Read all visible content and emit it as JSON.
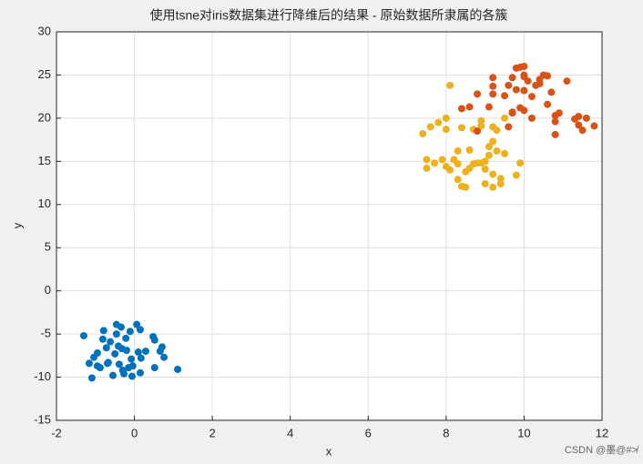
{
  "chart_data": {
    "type": "scatter",
    "title": "使用tsne对iris数据集进行降维后的结果 - 原始数据所隶属的各簇",
    "xlabel": "x",
    "ylabel": "y",
    "watermark": "CSDN @墨@#≯",
    "xlim": [
      -2,
      12
    ],
    "xticks": [
      -2,
      0,
      2,
      4,
      6,
      8,
      10,
      12
    ],
    "ylim": [
      -15,
      30
    ],
    "yticks": [
      -15,
      -10,
      -5,
      0,
      5,
      10,
      15,
      20,
      25,
      30
    ],
    "grid": true,
    "series": [
      {
        "color": "#0072BD",
        "x": [
          -1.3,
          -1.16,
          -1.09,
          -1.04,
          -0.95,
          -0.88,
          -0.79,
          -0.81,
          -0.72,
          -0.67,
          -0.62,
          -0.55,
          -0.5,
          -0.46,
          -0.41,
          -0.39,
          -0.34,
          -0.32,
          -0.3,
          -0.27,
          -0.22,
          -0.2,
          -0.15,
          -0.11,
          -0.08,
          -0.06,
          -0.04,
          0.06,
          0.1,
          0.15,
          0.15,
          0.17,
          0.29,
          0.48,
          0.52,
          0.52,
          0.66,
          0.71,
          0.76,
          1.11,
          -0.95,
          -0.69,
          -0.46
        ],
        "values": [
          -5.2,
          -8.4,
          -10.1,
          -7.7,
          -8.7,
          -8.9,
          -4.6,
          -5.6,
          -6.6,
          -8.3,
          -5.9,
          -9.8,
          -7.3,
          -5.0,
          -6.4,
          -8.5,
          -4.2,
          -6.7,
          -9.2,
          -9.6,
          -5.5,
          -6.9,
          -8.9,
          -4.7,
          -7.9,
          -9.9,
          -8.7,
          -3.9,
          -7.1,
          -4.5,
          -9.5,
          -7.8,
          -7.0,
          -5.3,
          -5.7,
          -8.9,
          -7.0,
          -6.5,
          -7.7,
          -9.1,
          -7.2,
          -8.4,
          -3.9
        ]
      },
      {
        "color": "#EDB120",
        "x": [
          8.1,
          7.4,
          7.6,
          7.5,
          7.5,
          7.7,
          7.9,
          8.0,
          8.0,
          8.0,
          8.1,
          8.2,
          8.3,
          8.3,
          8.3,
          8.4,
          8.4,
          8.5,
          8.5,
          8.6,
          8.6,
          8.7,
          8.8,
          8.9,
          8.9,
          8.9,
          9.0,
          9.0,
          9.1,
          9.1,
          9.2,
          9.2,
          9.2,
          9.2,
          9.3,
          9.3,
          9.4,
          9.4,
          9.5,
          9.5,
          9.8,
          9.9,
          8.7,
          9.0,
          7.8
        ],
        "values": [
          23.8,
          18.2,
          19.0,
          15.2,
          14.2,
          14.8,
          15.2,
          14.4,
          18.7,
          20.0,
          14.0,
          15.2,
          12.9,
          14.7,
          16.2,
          12.1,
          18.9,
          12.0,
          13.8,
          14.2,
          16.3,
          14.7,
          14.8,
          14.8,
          19.7,
          19.1,
          12.4,
          14.1,
          16.7,
          15.7,
          12.0,
          13.5,
          17.3,
          19.0,
          16.2,
          18.6,
          13.0,
          12.4,
          15.9,
          20.0,
          13.4,
          14.8,
          18.7,
          15.0,
          19.5
        ]
      },
      {
        "color": "#D95319",
        "x": [
          8.4,
          8.6,
          8.8,
          8.8,
          9.1,
          9.2,
          9.2,
          9.2,
          9.5,
          9.6,
          9.6,
          9.7,
          9.7,
          9.8,
          9.8,
          9.9,
          9.9,
          10.0,
          10.0,
          10.0,
          10.0,
          10.0,
          10.1,
          10.2,
          10.2,
          10.3,
          10.4,
          10.4,
          10.5,
          10.6,
          10.7,
          10.8,
          10.8,
          10.8,
          10.9,
          11.1,
          11.3,
          11.4,
          11.4,
          11.5,
          11.6,
          11.8,
          9.7,
          10.6
        ],
        "values": [
          21.1,
          21.3,
          22.8,
          18.5,
          21.3,
          23.7,
          24.7,
          22.8,
          22.6,
          19.0,
          23.8,
          24.7,
          20.7,
          25.8,
          23.3,
          25.9,
          21.2,
          23.2,
          26.0,
          24.8,
          20.9,
          25.0,
          24.3,
          22.5,
          20.0,
          23.8,
          24.0,
          24.5,
          25.0,
          21.6,
          23.0,
          20.3,
          19.6,
          18.1,
          20.6,
          24.3,
          19.9,
          20.2,
          19.2,
          18.6,
          20.0,
          19.1,
          20.6,
          24.9
        ]
      }
    ]
  }
}
